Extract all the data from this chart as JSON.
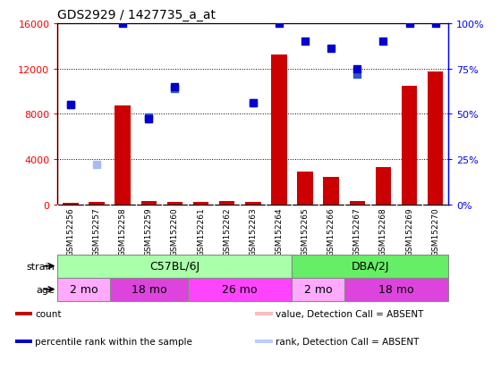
{
  "title": "GDS2929 / 1427735_a_at",
  "samples": [
    "GSM152256",
    "GSM152257",
    "GSM152258",
    "GSM152259",
    "GSM152260",
    "GSM152261",
    "GSM152262",
    "GSM152263",
    "GSM152264",
    "GSM152265",
    "GSM152266",
    "GSM152267",
    "GSM152268",
    "GSM152269",
    "GSM152270"
  ],
  "count_values": [
    150,
    200,
    8700,
    300,
    250,
    200,
    300,
    200,
    13200,
    2900,
    2400,
    300,
    3300,
    10500,
    11700
  ],
  "count_absent": [
    false,
    false,
    false,
    false,
    false,
    false,
    false,
    false,
    false,
    false,
    false,
    false,
    false,
    false,
    false
  ],
  "rank_values": [
    8800,
    3500,
    null,
    7700,
    10200,
    null,
    null,
    9000,
    null,
    null,
    null,
    11500,
    null,
    null,
    null
  ],
  "rank_absent": [
    false,
    true,
    null,
    false,
    false,
    null,
    null,
    false,
    null,
    null,
    null,
    false,
    null,
    null,
    null
  ],
  "percentile_values": [
    55,
    null,
    100,
    47,
    65,
    null,
    null,
    56,
    100,
    90,
    86,
    75,
    90,
    100,
    100
  ],
  "percentile_absent": [
    false,
    null,
    false,
    false,
    false,
    null,
    null,
    false,
    false,
    false,
    false,
    false,
    false,
    false,
    false
  ],
  "ylim_left": [
    0,
    16000
  ],
  "ylim_right": [
    0,
    100
  ],
  "yticks_left": [
    0,
    4000,
    8000,
    12000,
    16000
  ],
  "yticks_right": [
    0,
    25,
    50,
    75,
    100
  ],
  "bar_color": "#cc0000",
  "bar_absent_color": "#ff9999",
  "rank_color": "#3355cc",
  "rank_absent_color": "#aabbee",
  "percentile_color": "#0000cc",
  "bg_color": "#ffffff",
  "strain_groups": [
    {
      "label": "C57BL/6J",
      "start": 0,
      "end": 9,
      "color": "#aaffaa"
    },
    {
      "label": "DBA/2J",
      "start": 9,
      "end": 15,
      "color": "#66ee66"
    }
  ],
  "age_colors": {
    "2 mo": "#ffaaff",
    "18 mo": "#dd44dd",
    "26 mo": "#ff44ff"
  },
  "age_groups": [
    {
      "label": "2 mo",
      "start": 0,
      "end": 2
    },
    {
      "label": "18 mo",
      "start": 2,
      "end": 5
    },
    {
      "label": "26 mo",
      "start": 5,
      "end": 9
    },
    {
      "label": "2 mo",
      "start": 9,
      "end": 11
    },
    {
      "label": "18 mo",
      "start": 11,
      "end": 15
    }
  ],
  "legend_items": [
    {
      "label": "count",
      "color": "#cc0000"
    },
    {
      "label": "percentile rank within the sample",
      "color": "#0000cc"
    },
    {
      "label": "value, Detection Call = ABSENT",
      "color": "#ffbbbb"
    },
    {
      "label": "rank, Detection Call = ABSENT",
      "color": "#bbccff"
    }
  ]
}
